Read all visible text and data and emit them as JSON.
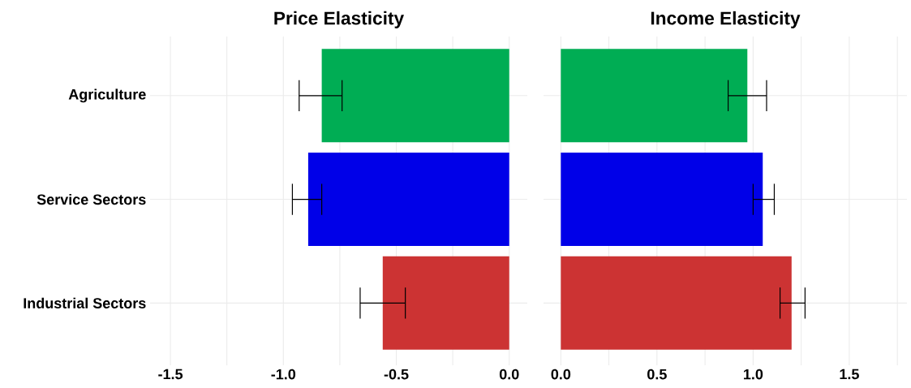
{
  "chart_data": [
    {
      "type": "bar",
      "orientation": "horizontal",
      "title": "Price Elasticity",
      "categories": [
        "Agriculture",
        "Service Sectors",
        "Industrial Sectors"
      ],
      "values": [
        -0.83,
        -0.89,
        -0.56
      ],
      "colors": [
        "#00ad54",
        "#0000e8",
        "#cc3333"
      ],
      "errors": [
        [
          -0.93,
          -0.74
        ],
        [
          -0.96,
          -0.83
        ],
        [
          -0.66,
          -0.46
        ]
      ],
      "xlim": [
        -1.59,
        0.08
      ],
      "xticks": [
        -1.5,
        {
          "value": -1.25,
          "label": null
        },
        {
          "value": -1,
          "label": "-1.0"
        },
        {
          "value": -0.75,
          "label": null
        },
        -0.5,
        {
          "value": -0.25,
          "label": null
        },
        {
          "value": 0,
          "label": "0.0"
        }
      ],
      "grid": true
    },
    {
      "type": "bar",
      "orientation": "horizontal",
      "title": "Income Elasticity",
      "categories": [
        null,
        null,
        null
      ],
      "values": [
        0.97,
        1.05,
        1.2
      ],
      "colors": [
        "#00ad54",
        "#0000e8",
        "#cc3333"
      ],
      "errors": [
        [
          0.87,
          1.07
        ],
        [
          1.0,
          1.11
        ],
        [
          1.14,
          1.27
        ]
      ],
      "xlim": [
        -0.09,
        1.8
      ],
      "xticks": [
        {
          "value": 0,
          "label": "0.0"
        },
        {
          "value": 0.25,
          "label": null
        },
        0.5,
        {
          "value": 0.75,
          "label": null
        },
        {
          "value": 1,
          "label": "1.0"
        },
        {
          "value": 1.25,
          "label": null
        },
        1.5,
        {
          "value": 1.75,
          "label": null
        }
      ],
      "grid": true,
      "tick_labels": "x"
    }
  ]
}
